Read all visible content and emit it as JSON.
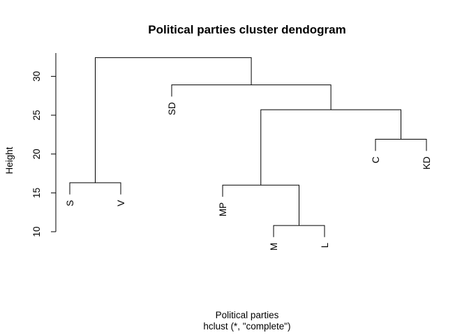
{
  "chart_data": {
    "type": "dendrogram",
    "title": "Political parties cluster dendogram",
    "xlabel": "Political parties",
    "sublabel": "hclust (*, \"complete\")",
    "ylabel": "Height",
    "ylim": [
      10,
      33
    ],
    "yticks": [
      10,
      15,
      20,
      25,
      30
    ],
    "leaves": [
      "S",
      "V",
      "SD",
      "MP",
      "M",
      "L",
      "C",
      "KD"
    ],
    "merges": [
      {
        "left": "M",
        "right": "L",
        "height": 10.8
      },
      {
        "left": "MP",
        "right": "M+L",
        "height": 16.0
      },
      {
        "left": "C",
        "right": "KD",
        "height": 21.9
      },
      {
        "left": "S",
        "right": "V",
        "height": 16.3
      },
      {
        "left": "MP+M+L",
        "right": "C+KD",
        "height": 25.7
      },
      {
        "left": "SD",
        "right": "MP+M+L+C+KD",
        "height": 28.9
      },
      {
        "left": "S+V",
        "right": "SD+MP+M+L+C+KD",
        "height": 32.4
      }
    ]
  }
}
